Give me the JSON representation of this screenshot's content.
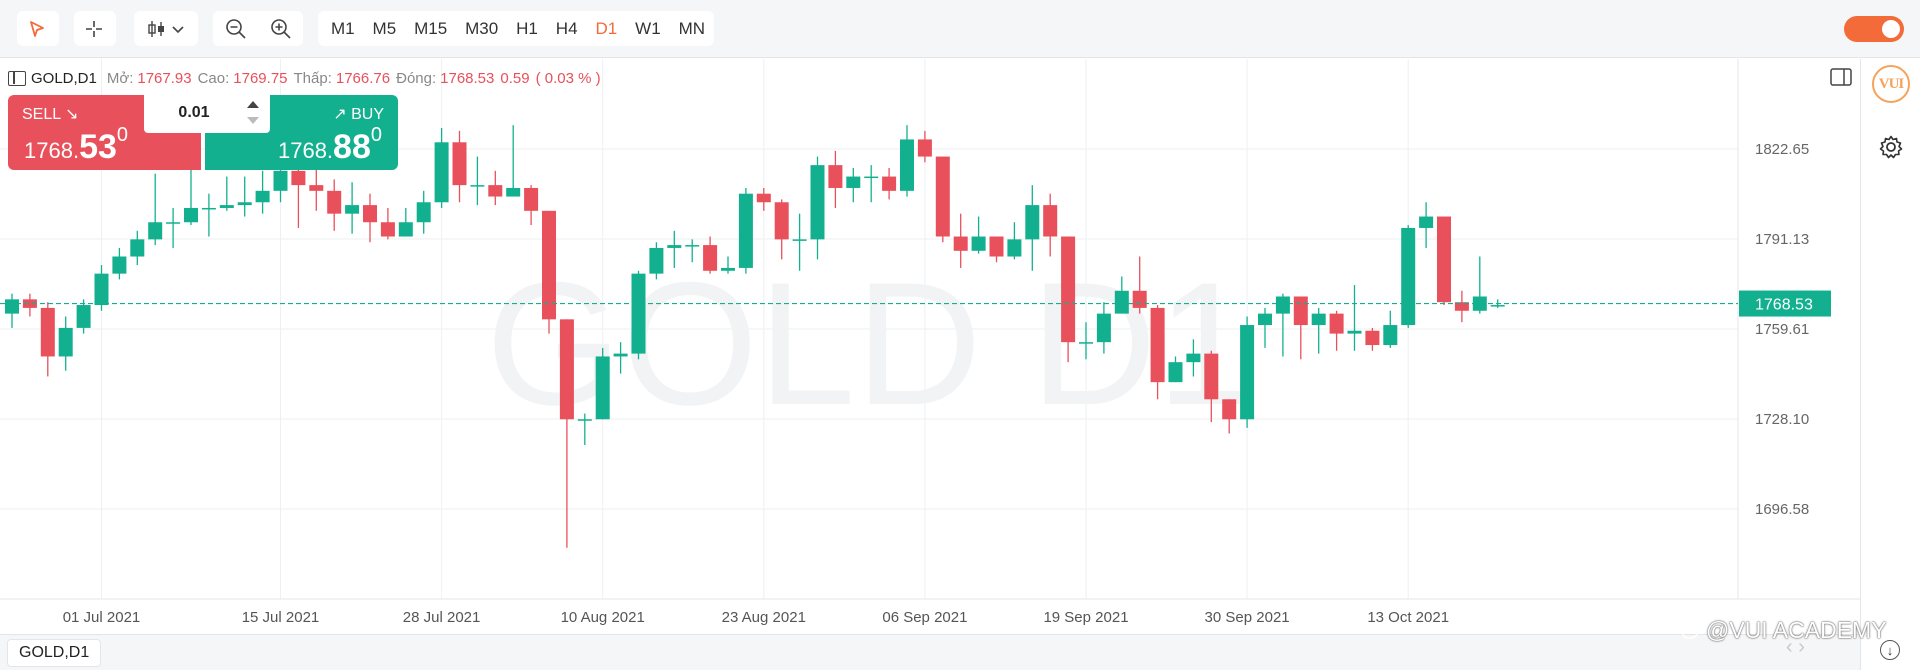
{
  "toolbar": {
    "timeframes": [
      "M1",
      "M5",
      "M15",
      "M30",
      "H1",
      "H4",
      "D1",
      "W1",
      "MN"
    ],
    "active_timeframe": "D1",
    "accent_color": "#f26b38"
  },
  "info": {
    "symbol": "GOLD,D1",
    "open_label": "Mở:",
    "open": "1767.93",
    "high_label": "Cao:",
    "high": "1769.75",
    "low_label": "Thấp:",
    "low": "1766.76",
    "close_label": "Đóng:",
    "close": "1768.53",
    "change": "0.59",
    "change_pct": "( 0.03 % )"
  },
  "trade": {
    "sell_label": "SELL ↘",
    "buy_label": "↗ BUY",
    "quantity": "0.01",
    "sell_price_main": "1768.",
    "sell_price_big": "53",
    "sell_price_sup": "0",
    "buy_price_main": "1768.",
    "buy_price_big": "88",
    "buy_price_sup": "0",
    "sell_color": "#e8505b",
    "buy_color": "#12b08f"
  },
  "chart_data": {
    "type": "candlestick",
    "watermark": "GOLD D1",
    "current_price": 1768.53,
    "current_price_label": "1768.53",
    "y_ticks": [
      {
        "value": 1822.65,
        "label": "1822.65"
      },
      {
        "value": 1791.13,
        "label": "1791.13"
      },
      {
        "value": 1759.61,
        "label": "1759.61"
      },
      {
        "value": 1728.1,
        "label": "1728.10"
      },
      {
        "value": 1696.58,
        "label": "1696.58"
      }
    ],
    "x_ticks": [
      {
        "index": 5,
        "label": "01 Jul 2021"
      },
      {
        "index": 15,
        "label": "15 Jul 2021"
      },
      {
        "index": 24,
        "label": "28 Jul 2021"
      },
      {
        "index": 33,
        "label": "10 Aug 2021"
      },
      {
        "index": 42,
        "label": "23 Aug 2021"
      },
      {
        "index": 51,
        "label": "06 Sep 2021"
      },
      {
        "index": 60,
        "label": "19 Sep 2021"
      },
      {
        "index": 69,
        "label": "30 Sep 2021"
      },
      {
        "index": 78,
        "label": "13 Oct 2021"
      }
    ],
    "up_color": "#12b08f",
    "down_color": "#e8505b",
    "grid": true,
    "candles": [
      [
        1765,
        1770,
        1772,
        1760
      ],
      [
        1770,
        1767,
        1772,
        1764
      ],
      [
        1767,
        1750,
        1769,
        1743
      ],
      [
        1750,
        1760,
        1764,
        1745
      ],
      [
        1760,
        1768,
        1770,
        1758
      ],
      [
        1768,
        1779,
        1782,
        1766
      ],
      [
        1779,
        1785,
        1788,
        1777
      ],
      [
        1785,
        1791,
        1794,
        1782
      ],
      [
        1791,
        1797,
        1814,
        1789
      ],
      [
        1797,
        1797,
        1802,
        1788
      ],
      [
        1797,
        1802,
        1818,
        1796
      ],
      [
        1802,
        1802,
        1807,
        1792
      ],
      [
        1802,
        1803,
        1813,
        1801
      ],
      [
        1803,
        1804,
        1813,
        1799
      ],
      [
        1804,
        1808,
        1815,
        1800
      ],
      [
        1808,
        1815,
        1821,
        1804
      ],
      [
        1815,
        1810,
        1819,
        1795
      ],
      [
        1810,
        1808,
        1816,
        1801
      ],
      [
        1808,
        1800,
        1812,
        1794
      ],
      [
        1800,
        1803,
        1811,
        1793
      ],
      [
        1803,
        1797,
        1807,
        1790
      ],
      [
        1797,
        1792,
        1802,
        1791
      ],
      [
        1792,
        1797,
        1802,
        1792
      ],
      [
        1797,
        1804,
        1808,
        1793
      ],
      [
        1804,
        1825,
        1830,
        1802
      ],
      [
        1825,
        1810,
        1829,
        1804
      ],
      [
        1810,
        1810,
        1820,
        1803
      ],
      [
        1810,
        1806,
        1815,
        1803
      ],
      [
        1806,
        1809,
        1831,
        1806
      ],
      [
        1809,
        1801,
        1810,
        1796
      ],
      [
        1801,
        1763,
        1801,
        1758
      ],
      [
        1763,
        1728,
        1763,
        1683
      ],
      [
        1728,
        1728,
        1730,
        1719
      ],
      [
        1728,
        1750,
        1753,
        1728
      ],
      [
        1750,
        1751,
        1755,
        1744
      ],
      [
        1751,
        1779,
        1780,
        1749
      ],
      [
        1779,
        1788,
        1790,
        1777
      ],
      [
        1788,
        1789,
        1794,
        1781
      ],
      [
        1789,
        1789,
        1791,
        1783
      ],
      [
        1789,
        1780,
        1792,
        1779
      ],
      [
        1780,
        1781,
        1785,
        1779
      ],
      [
        1781,
        1807,
        1809,
        1779
      ],
      [
        1807,
        1804,
        1809,
        1801
      ],
      [
        1804,
        1791,
        1805,
        1784
      ],
      [
        1791,
        1791,
        1800,
        1780
      ],
      [
        1791,
        1817,
        1820,
        1784
      ],
      [
        1817,
        1809,
        1822,
        1802
      ],
      [
        1809,
        1813,
        1816,
        1804
      ],
      [
        1813,
        1813,
        1817,
        1804
      ],
      [
        1813,
        1808,
        1816,
        1805
      ],
      [
        1808,
        1826,
        1831,
        1806
      ],
      [
        1826,
        1820,
        1829,
        1818
      ],
      [
        1820,
        1792,
        1820,
        1790
      ],
      [
        1792,
        1787,
        1800,
        1781
      ],
      [
        1787,
        1792,
        1799,
        1786
      ],
      [
        1792,
        1785,
        1792,
        1783
      ],
      [
        1785,
        1791,
        1797,
        1784
      ],
      [
        1791,
        1803,
        1810,
        1780
      ],
      [
        1803,
        1792,
        1807,
        1785
      ],
      [
        1792,
        1755,
        1792,
        1748
      ],
      [
        1755,
        1755,
        1762,
        1749
      ],
      [
        1755,
        1765,
        1769,
        1751
      ],
      [
        1765,
        1773,
        1778,
        1765
      ],
      [
        1773,
        1767,
        1785,
        1765
      ],
      [
        1767,
        1741,
        1768,
        1735
      ],
      [
        1741,
        1748,
        1750,
        1741
      ],
      [
        1748,
        1751,
        1756,
        1743
      ],
      [
        1751,
        1735,
        1752,
        1727
      ],
      [
        1735,
        1728,
        1735,
        1723
      ],
      [
        1728,
        1761,
        1764,
        1725
      ],
      [
        1761,
        1765,
        1767,
        1753
      ],
      [
        1765,
        1771,
        1772,
        1750
      ],
      [
        1771,
        1761,
        1771,
        1749
      ],
      [
        1761,
        1765,
        1767,
        1751
      ],
      [
        1765,
        1758,
        1766,
        1752
      ],
      [
        1758,
        1759,
        1775,
        1752
      ],
      [
        1759,
        1754,
        1760,
        1752
      ],
      [
        1754,
        1761,
        1766,
        1753
      ],
      [
        1761,
        1795,
        1796,
        1760
      ],
      [
        1795,
        1799,
        1804,
        1788
      ],
      [
        1799,
        1769,
        1799,
        1768
      ],
      [
        1769,
        1766,
        1773,
        1762
      ],
      [
        1766,
        1771,
        1785,
        1765
      ],
      [
        1768,
        1768,
        1770,
        1767
      ]
    ]
  },
  "bottom": {
    "symbol_tab": "GOLD,D1",
    "watermark_text": "@VUI ACADEMY",
    "nav_arrows": "‹  ›",
    "scroll_icon": "↓"
  },
  "logo": {
    "text": "VUI"
  }
}
